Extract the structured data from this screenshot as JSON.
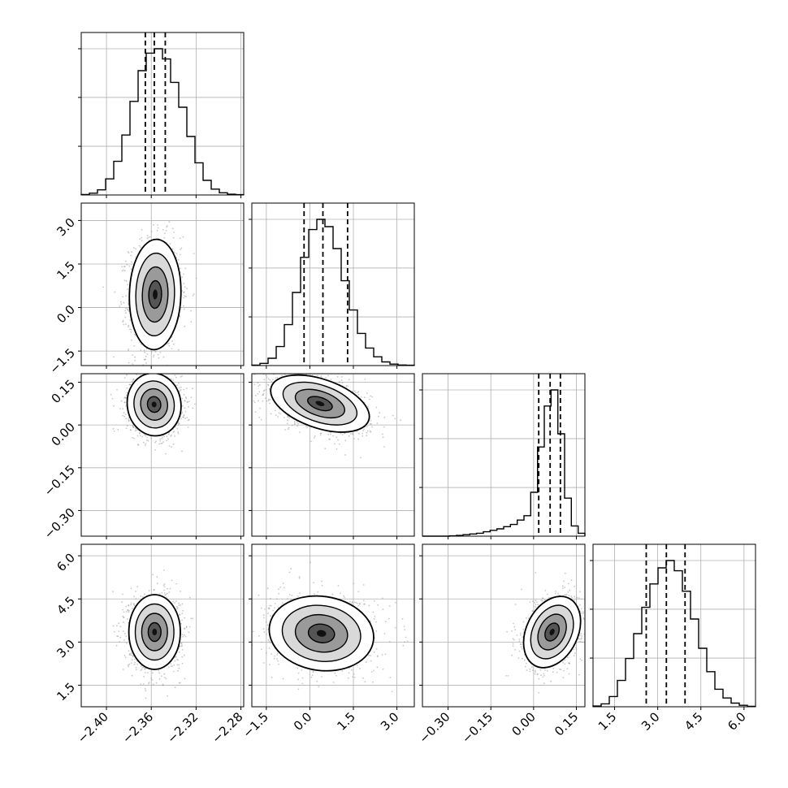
{
  "chart_data": {
    "type": "corner",
    "title": "",
    "parameters": [
      {
        "ticks": [
          -2.4,
          -2.36,
          -2.32,
          -2.28
        ],
        "tick_labels": [
          "−2.40",
          "−2.36",
          "−2.32",
          "−2.28"
        ],
        "range": [
          -2.4225,
          -2.2775
        ],
        "median": -2.3573,
        "q16": -2.3653,
        "q84": -2.3475
      },
      {
        "ticks": [
          -1.5,
          0.0,
          1.5,
          3.0
        ],
        "tick_labels": [
          "−1.5",
          "0.0",
          "1.5",
          "3.0"
        ],
        "range": [
          -2.0,
          3.6
        ],
        "median": 0.45,
        "q16": -0.2,
        "q84": 1.3
      },
      {
        "ticks": [
          -0.3,
          -0.15,
          0.0,
          0.15
        ],
        "tick_labels": [
          "−0.30",
          "−0.15",
          "0.00",
          "0.15"
        ],
        "range": [
          -0.39,
          0.18
        ],
        "median": 0.058,
        "q16": 0.018,
        "q84": 0.094
      },
      {
        "ticks": [
          1.5,
          3.0,
          4.5,
          6.0
        ],
        "tick_labels": [
          "1.5",
          "3.0",
          "4.5",
          "6.0"
        ],
        "range": [
          0.75,
          6.4
        ],
        "median": 3.3,
        "q16": 2.6,
        "q84": 3.95
      }
    ],
    "histograms": [
      [
        0.003,
        0.012,
        0.035,
        0.11,
        0.23,
        0.41,
        0.64,
        0.85,
        0.97,
        1.0,
        0.93,
        0.77,
        0.6,
        0.4,
        0.22,
        0.1,
        0.04,
        0.015,
        0.005,
        0.002
      ],
      [
        0.003,
        0.015,
        0.05,
        0.13,
        0.28,
        0.5,
        0.74,
        0.93,
        1.0,
        0.95,
        0.8,
        0.58,
        0.38,
        0.22,
        0.12,
        0.06,
        0.025,
        0.01,
        0.004,
        0.002
      ],
      [
        0.0,
        0.0,
        0.0,
        0.0,
        0.002,
        0.005,
        0.01,
        0.015,
        0.02,
        0.03,
        0.04,
        0.05,
        0.065,
        0.08,
        0.11,
        0.14,
        0.3,
        0.61,
        0.89,
        1.0,
        0.7,
        0.26,
        0.07,
        0.02
      ],
      [
        0.005,
        0.02,
        0.07,
        0.18,
        0.33,
        0.5,
        0.68,
        0.84,
        0.95,
        1.0,
        0.93,
        0.79,
        0.6,
        0.4,
        0.24,
        0.12,
        0.06,
        0.025,
        0.01,
        0.003
      ]
    ],
    "pairs": [
      {
        "row": 1,
        "col": 0,
        "center": [
          -2.3565,
          0.45
        ],
        "sd": [
          0.0115,
          0.95
        ],
        "rho": 0.05
      },
      {
        "row": 2,
        "col": 0,
        "center": [
          -2.3575,
          0.072
        ],
        "sd": [
          0.012,
          0.055
        ],
        "rho": -0.05
      },
      {
        "row": 2,
        "col": 1,
        "center": [
          0.35,
          0.075
        ],
        "sd": [
          0.85,
          0.05
        ],
        "rho": -0.45
      },
      {
        "row": 3,
        "col": 0,
        "center": [
          -2.357,
          3.35
        ],
        "sd": [
          0.0115,
          0.65
        ],
        "rho": 0.0
      },
      {
        "row": 3,
        "col": 1,
        "center": [
          0.4,
          3.3
        ],
        "sd": [
          0.9,
          0.65
        ],
        "rho": -0.1
      },
      {
        "row": 3,
        "col": 2,
        "center": [
          0.065,
          3.35
        ],
        "sd": [
          0.05,
          0.62
        ],
        "rho": 0.3
      }
    ],
    "grid": true,
    "quantile_lines": "dashed",
    "colors": {
      "axis": "#000000",
      "grid": "#b0b0b0",
      "points": "#9a9a9a",
      "contour": "#000000"
    }
  }
}
